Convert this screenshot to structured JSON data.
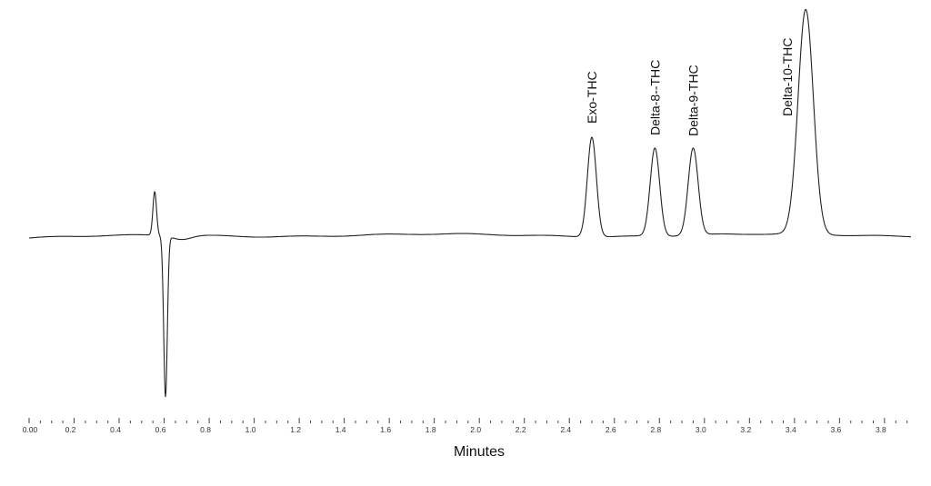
{
  "chart_data": {
    "type": "line",
    "title": "",
    "xlabel": "Minutes",
    "ylabel": "",
    "xlim": [
      0.0,
      3.92
    ],
    "ylim": [
      -185,
      255
    ],
    "grid": false,
    "tick_labels": [
      "0.00",
      "0.2",
      "0.4",
      "0.6",
      "0.8",
      "1.0",
      "1.2",
      "1.4",
      "1.6",
      "1.8",
      "2.0",
      "2.2",
      "2.4",
      "2.6",
      "2.8",
      "3.0",
      "3.2",
      "3.4",
      "3.6",
      "3.8"
    ],
    "tick_values": [
      0,
      0.2,
      0.4,
      0.6,
      0.8,
      1.0,
      1.2,
      1.4,
      1.6,
      1.8,
      2.0,
      2.2,
      2.4,
      2.6,
      2.8,
      3.0,
      3.2,
      3.4,
      3.6,
      3.8
    ],
    "minor_tick_step": 0.05,
    "line_color": "#222222",
    "solvent_disturbance": [
      {
        "time": 0.558,
        "height": 48,
        "width": 0.008
      },
      {
        "time": 0.606,
        "height": -177,
        "width": 0.008
      }
    ],
    "peaks": [
      {
        "name": "Exo-THC",
        "time": 2.5,
        "height": 110,
        "width": 0.02
      },
      {
        "name": "Delta-8--THC",
        "time": 2.78,
        "height": 97,
        "width": 0.021
      },
      {
        "name": "Delta-9-THC",
        "time": 2.95,
        "height": 96,
        "width": 0.022
      },
      {
        "name": "Delta-10-THC",
        "time": 3.45,
        "height": 247,
        "width": 0.034
      }
    ]
  }
}
